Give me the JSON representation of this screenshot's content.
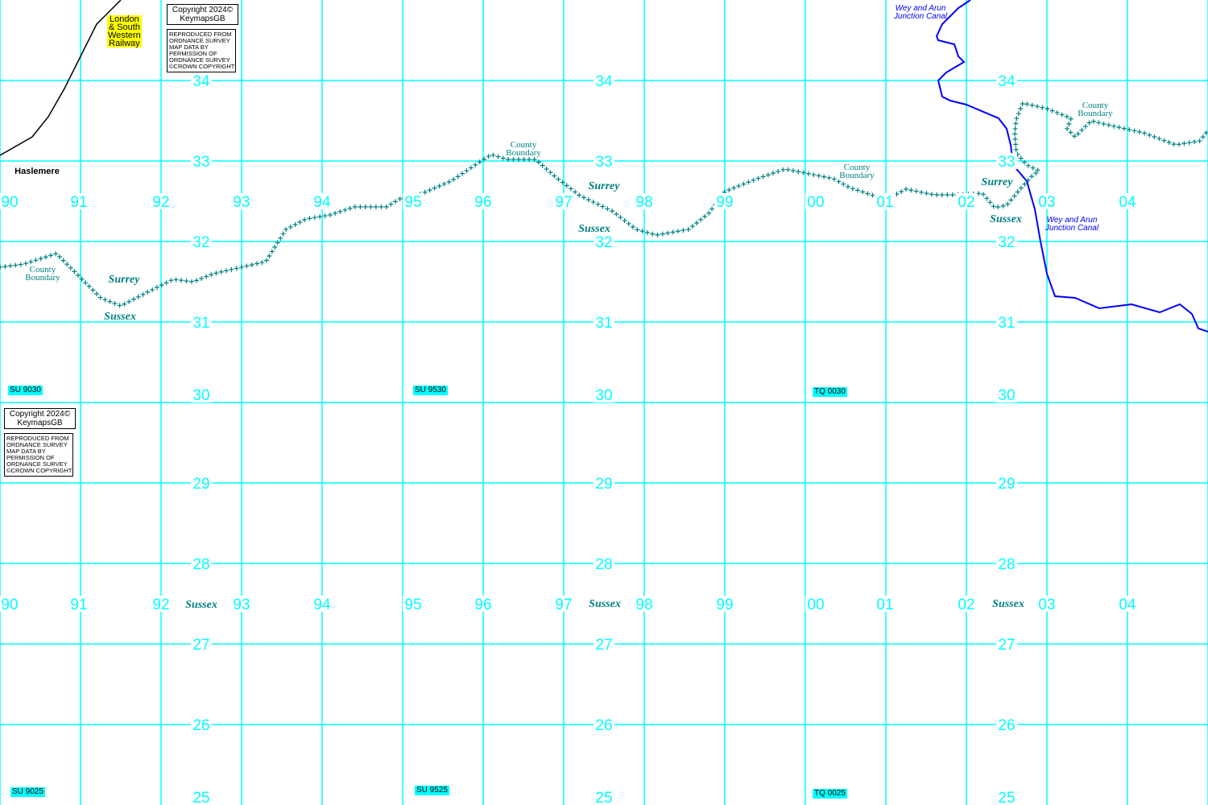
{
  "map": {
    "colors": {
      "grid": "#00ffff",
      "boundary": "#008080",
      "canal": "#0000ff",
      "railway": "#000000",
      "railway_label_bg": "#ffff00"
    },
    "eastings": [
      "90",
      "91",
      "92",
      "93",
      "94",
      "95",
      "96",
      "97",
      "98",
      "99",
      "00",
      "01",
      "02",
      "03",
      "04"
    ],
    "northings_top": [
      "34",
      "33",
      "32",
      "31",
      "30"
    ],
    "northings_bottom": [
      "29",
      "28",
      "27",
      "26",
      "25"
    ],
    "grid_refs": [
      "SU 9030",
      "SU 9530",
      "TQ 0030",
      "SU 9025",
      "SU 9525",
      "TQ 0025"
    ],
    "copyright": {
      "line1": "Copyright 2024©",
      "line2": "KeymapsGB",
      "notice": "REPRODUCED FROM\nORDNANCE SURVEY\nMAP DATA BY\nPERMISSION OF\nORDNANCE SURVEY\n©CROWN COPYRIGHT"
    },
    "railway_label": "London\n& South\nWestern\nRailway",
    "town": "Haslemere",
    "county_boundary_label": "County Boundary",
    "county_line1": "County",
    "county_line2": "Boundary",
    "surrey": "Surrey",
    "sussex": "Sussex",
    "canal_line1": "Wey and Arun",
    "canal_line2": "Junction Canal"
  }
}
